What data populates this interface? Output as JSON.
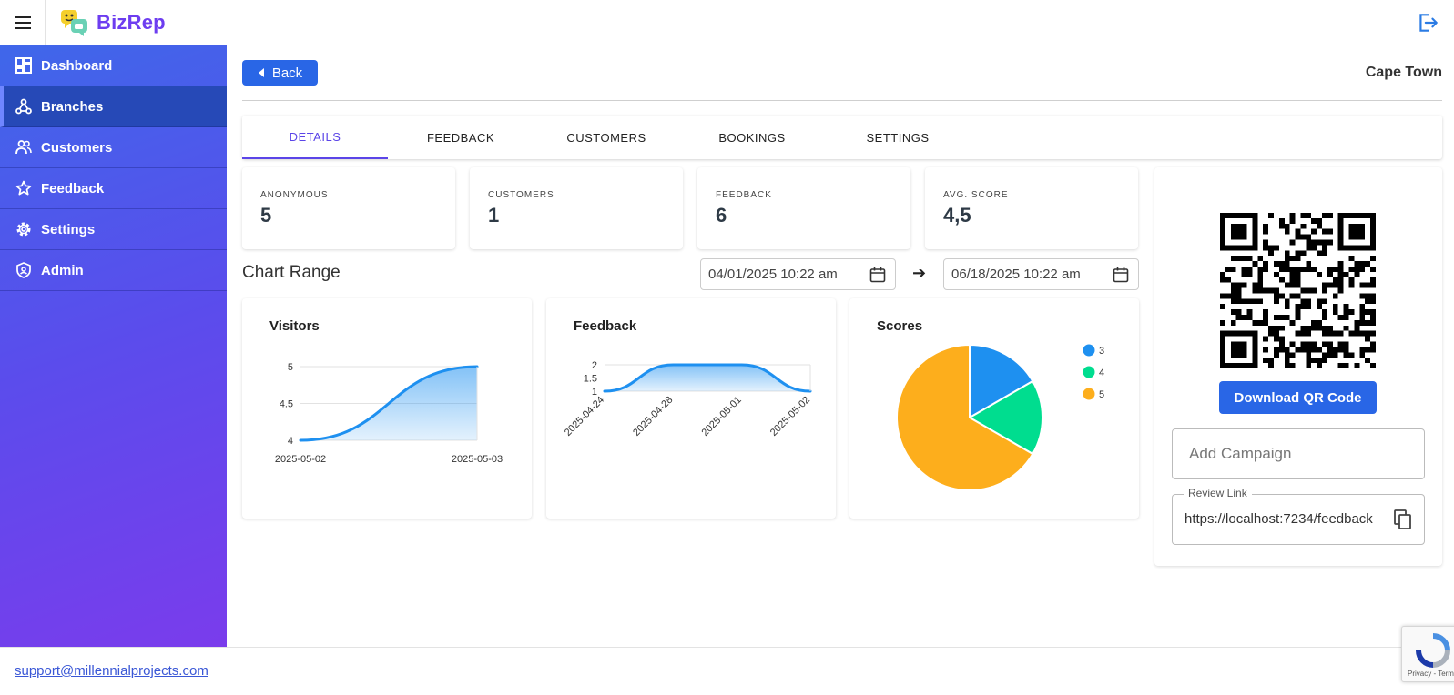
{
  "app": {
    "name": "BizRep"
  },
  "sidebar": {
    "items": [
      {
        "label": "Dashboard",
        "icon": "dashboard-icon"
      },
      {
        "label": "Branches",
        "icon": "branches-icon"
      },
      {
        "label": "Customers",
        "icon": "customers-icon"
      },
      {
        "label": "Feedback",
        "icon": "star-icon"
      },
      {
        "label": "Settings",
        "icon": "gear-icon"
      },
      {
        "label": "Admin",
        "icon": "shield-icon"
      }
    ],
    "active": "Branches"
  },
  "header": {
    "back_label": "Back",
    "branch": "Cape Town"
  },
  "tabs": [
    "DETAILS",
    "FEEDBACK",
    "CUSTOMERS",
    "BOOKINGS",
    "SETTINGS"
  ],
  "active_tab": "DETAILS",
  "stats": [
    {
      "label": "ANONYMOUS",
      "value": "5"
    },
    {
      "label": "CUSTOMERS",
      "value": "1"
    },
    {
      "label": "FEEDBACK",
      "value": "6"
    },
    {
      "label": "AVG. SCORE",
      "value": "4,5"
    }
  ],
  "chart_range": {
    "title": "Chart Range",
    "from": "04/01/2025 10:22 am",
    "to": "06/18/2025 10:22 am"
  },
  "chart_data": [
    {
      "type": "area",
      "title": "Visitors",
      "x": [
        "2025-05-02",
        "2025-05-03"
      ],
      "values": [
        4,
        5
      ],
      "yticks": [
        "4",
        "4.5",
        "5"
      ],
      "ylim": [
        4,
        5
      ],
      "grid": true,
      "color": "#1e90f0"
    },
    {
      "type": "area",
      "title": "Feedback",
      "x": [
        "2025-04-24",
        "2025-04-28",
        "2025-05-01",
        "2025-05-02"
      ],
      "values": [
        1,
        2,
        2,
        1
      ],
      "yticks": [
        "1",
        "1.5",
        "2"
      ],
      "ylim": [
        1,
        2
      ],
      "grid": true,
      "color": "#1e90f0"
    },
    {
      "type": "pie",
      "title": "Scores",
      "labels": [
        "3",
        "4",
        "5"
      ],
      "values": [
        1,
        1,
        4
      ],
      "colors": [
        "#1e90f0",
        "#00dd8f",
        "#fdae1c"
      ],
      "legend": "top-right"
    }
  ],
  "qr_panel": {
    "download_label": "Download QR Code",
    "campaign_placeholder": "Add Campaign",
    "review_label": "Review Link",
    "review_value": "https://localhost:7234/feedback"
  },
  "footer": {
    "email": "support@millennialprojects.com"
  },
  "recaptcha": {
    "text": "Privacy - Terms"
  }
}
